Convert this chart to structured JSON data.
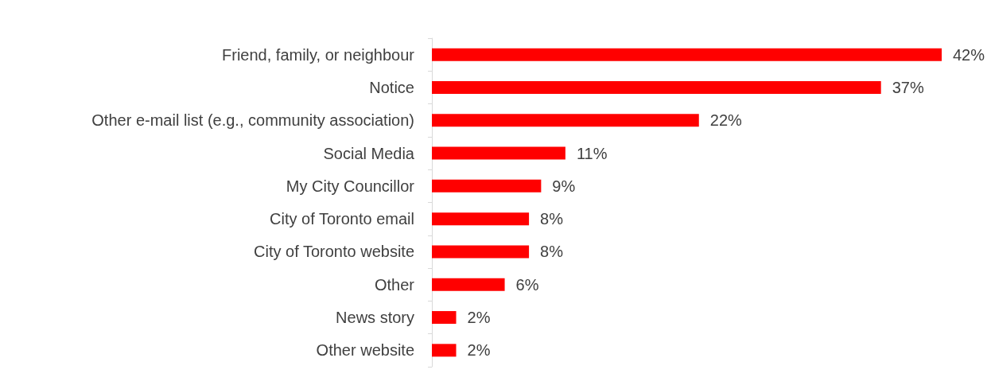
{
  "chart_data": {
    "type": "bar",
    "orientation": "horizontal",
    "categories": [
      "Friend, family, or neighbour",
      "Notice",
      "Other e-mail list (e.g., community association)",
      "Social Media",
      "My City Councillor",
      "City of Toronto email",
      "City of Toronto website",
      "Other",
      "News story",
      "Other website"
    ],
    "values": [
      42,
      37,
      22,
      11,
      9,
      8,
      8,
      6,
      2,
      2
    ],
    "value_labels": [
      "42%",
      "37%",
      "22%",
      "11%",
      "9%",
      "8%",
      "8%",
      "6%",
      "2%",
      "2%"
    ],
    "color": "#ff0000"
  }
}
